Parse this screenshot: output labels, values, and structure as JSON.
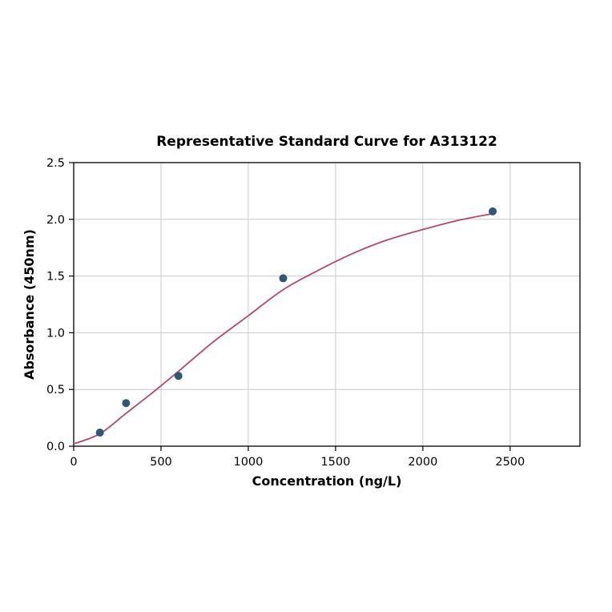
{
  "chart_data": {
    "type": "scatter",
    "title": "Representative Standard Curve for A313122",
    "xlabel": "Concentration (ng/L)",
    "ylabel": "Absorbance (450nm)",
    "xlim": [
      0,
      2900
    ],
    "ylim": [
      0,
      2.5
    ],
    "x_ticks": [
      0,
      500,
      1000,
      1500,
      2000,
      2500
    ],
    "y_ticks": [
      0.0,
      0.5,
      1.0,
      1.5,
      2.0,
      2.5
    ],
    "grid": true,
    "legend": "none",
    "points": {
      "x": [
        150,
        300,
        600,
        1200,
        2400
      ],
      "y": [
        0.12,
        0.38,
        0.62,
        1.48,
        2.07
      ]
    },
    "fit_curve": {
      "x": [
        0,
        150,
        300,
        450,
        600,
        800,
        1000,
        1200,
        1400,
        1600,
        1800,
        2000,
        2200,
        2400
      ],
      "y": [
        0.02,
        0.11,
        0.29,
        0.47,
        0.66,
        0.92,
        1.15,
        1.38,
        1.55,
        1.7,
        1.82,
        1.91,
        1.99,
        2.05
      ]
    },
    "colors": {
      "point": "#2f5878",
      "curve": "#b6486b",
      "grid": "#c9c9c9",
      "axis": "#000000",
      "background": "#ffffff"
    }
  }
}
